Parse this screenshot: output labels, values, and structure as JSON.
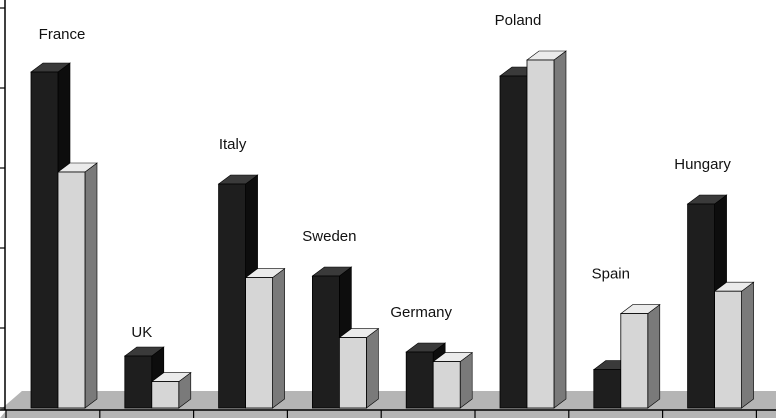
{
  "chart_data": {
    "type": "bar",
    "style": "3d-clustered",
    "categories": [
      "France",
      "UK",
      "Italy",
      "Sweden",
      "Germany",
      "Poland",
      "Spain",
      "Hungary"
    ],
    "series": [
      {
        "values": [
          4.2,
          0.65,
          2.8,
          1.65,
          0.7,
          4.15,
          0.48,
          2.55
        ]
      },
      {
        "values": [
          2.95,
          0.33,
          1.63,
          0.88,
          0.58,
          4.35,
          1.18,
          1.46
        ]
      }
    ],
    "ylim": [
      0,
      5
    ],
    "grid": false,
    "legend": "none",
    "colors": {
      "series1_front": "#1e1e1e",
      "series1_top": "#3a3a3a",
      "series1_side": "#0d0d0d",
      "series2_front": "#d6d6d6",
      "series2_top": "#ebebeb",
      "series2_side": "#7a7a7a",
      "floor": "#b5b5b5",
      "axis": "#000000"
    }
  }
}
